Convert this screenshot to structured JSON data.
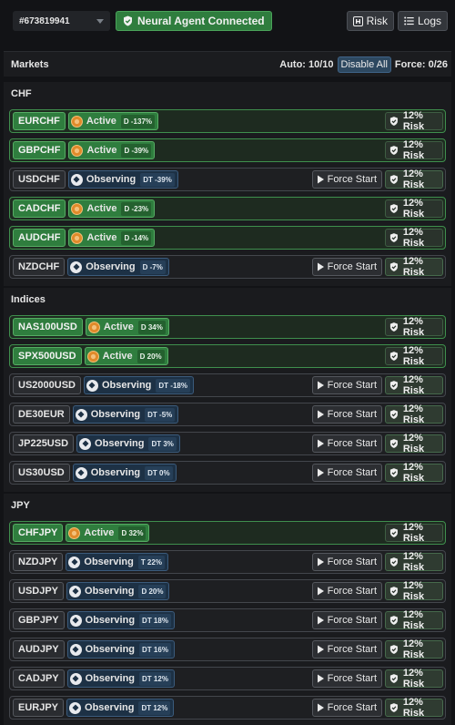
{
  "header": {
    "account": "#673819941",
    "connection": "Neural Agent Connected",
    "risk_btn": "Risk",
    "logs_btn": "Logs"
  },
  "markets": {
    "title": "Markets",
    "auto": "Auto: 10/10",
    "disable_all": "Disable All",
    "force": "Force: 0/26"
  },
  "labels": {
    "force_start": "Force Start",
    "risk": "12% Risk"
  },
  "colors": {
    "active_green": "#2f7d3e",
    "observing_blue": "#1d3145",
    "active_icon": "#e08a2a"
  },
  "sections": [
    {
      "name": "CHF",
      "rows": [
        {
          "symbol": "EURCHF",
          "status": "Active",
          "tag": "D -137%"
        },
        {
          "symbol": "GBPCHF",
          "status": "Active",
          "tag": "D -39%"
        },
        {
          "symbol": "USDCHF",
          "status": "Observing",
          "tag": "DT -39%"
        },
        {
          "symbol": "CADCHF",
          "status": "Active",
          "tag": "D -23%"
        },
        {
          "symbol": "AUDCHF",
          "status": "Active",
          "tag": "D -14%"
        },
        {
          "symbol": "NZDCHF",
          "status": "Observing",
          "tag": "D -7%"
        }
      ]
    },
    {
      "name": "Indices",
      "rows": [
        {
          "symbol": "NAS100USD",
          "status": "Active",
          "tag": "D 34%"
        },
        {
          "symbol": "SPX500USD",
          "status": "Active",
          "tag": "D 20%"
        },
        {
          "symbol": "US2000USD",
          "status": "Observing",
          "tag": "DT -18%"
        },
        {
          "symbol": "DE30EUR",
          "status": "Observing",
          "tag": "DT -5%"
        },
        {
          "symbol": "JP225USD",
          "status": "Observing",
          "tag": "DT 3%"
        },
        {
          "symbol": "US30USD",
          "status": "Observing",
          "tag": "DT 0%"
        }
      ]
    },
    {
      "name": "JPY",
      "rows": [
        {
          "symbol": "CHFJPY",
          "status": "Active",
          "tag": "D 32%"
        },
        {
          "symbol": "NZDJPY",
          "status": "Observing",
          "tag": "T 22%"
        },
        {
          "symbol": "USDJPY",
          "status": "Observing",
          "tag": "D 20%"
        },
        {
          "symbol": "GBPJPY",
          "status": "Observing",
          "tag": "DT 18%"
        },
        {
          "symbol": "AUDJPY",
          "status": "Observing",
          "tag": "DT 16%"
        },
        {
          "symbol": "CADJPY",
          "status": "Observing",
          "tag": "DT 12%"
        },
        {
          "symbol": "EURJPY",
          "status": "Observing",
          "tag": "DT 12%"
        }
      ]
    }
  ]
}
